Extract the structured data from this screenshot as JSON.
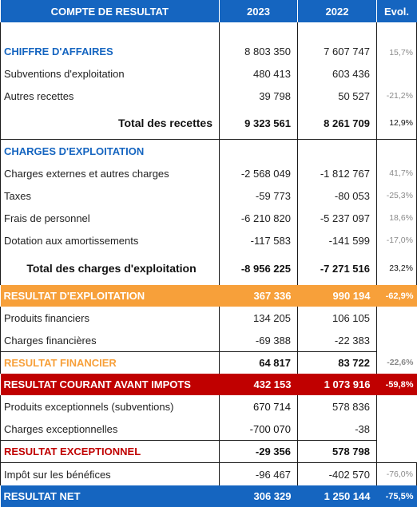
{
  "header": {
    "label": "COMPTE DE RESULTAT",
    "year1": "2023",
    "year2": "2022",
    "evol": "Evol."
  },
  "ca": {
    "title": "CHIFFRE D'AFFAIRES",
    "v2023": "8 803 350",
    "v2022": "7 607 747",
    "evol": "15,7%"
  },
  "subv": {
    "label": "Subventions d'exploitation",
    "v2023": "480 413",
    "v2022": "603 436",
    "evol": ""
  },
  "autres": {
    "label": "Autres recettes",
    "v2023": "39 798",
    "v2022": "50 527",
    "evol": "-21,2%"
  },
  "total_recettes": {
    "label": "Total des recettes",
    "v2023": "9 323 561",
    "v2022": "8 261 709",
    "evol": "12,9%"
  },
  "charges_title": "CHARGES D'EXPLOITATION",
  "charges_ext": {
    "label": "Charges externes et autres charges",
    "v2023": "-2 568 049",
    "v2022": "-1 812 767",
    "evol": "41,7%"
  },
  "taxes": {
    "label": "Taxes",
    "v2023": "-59 773",
    "v2022": "-80 053",
    "evol": "-25,3%"
  },
  "personnel": {
    "label": "Frais de personnel",
    "v2023": "-6 210 820",
    "v2022": "-5 237 097",
    "evol": "18,6%"
  },
  "dotation": {
    "label": "Dotation aux amortissements",
    "v2023": "-117 583",
    "v2022": "-141 599",
    "evol": "-17,0%"
  },
  "total_charges": {
    "label": "Total des charges d'exploitation",
    "v2023": "-8 956 225",
    "v2022": "-7 271 516",
    "evol": "23,2%"
  },
  "res_exploit": {
    "label": "RESULTAT D'EXPLOITATION",
    "v2023": "367 336",
    "v2022": "990 194",
    "evol": "-62,9%"
  },
  "prod_fin": {
    "label": "Produits financiers",
    "v2023": "134 205",
    "v2022": "106 105",
    "evol": ""
  },
  "charges_fin": {
    "label": "Charges financières",
    "v2023": "-69 388",
    "v2022": "-22 383",
    "evol": ""
  },
  "res_fin": {
    "label": "RESULTAT FINANCIER",
    "v2023": "64 817",
    "v2022": "83 722",
    "evol": "-22,6%"
  },
  "res_courant": {
    "label": "RESULTAT COURANT AVANT IMPOTS",
    "v2023": "432 153",
    "v2022": "1 073 916",
    "evol": "-59,8%"
  },
  "prod_exc": {
    "label": "Produits exceptionnels (subventions)",
    "v2023": "670 714",
    "v2022": "578 836",
    "evol": ""
  },
  "charges_exc": {
    "label": "Charges exceptionnelles",
    "v2023": "-700 070",
    "v2022": "-38",
    "evol": ""
  },
  "res_exc": {
    "label": "RESULTAT EXCEPTIONNEL",
    "v2023": "-29 356",
    "v2022": "578 798",
    "evol": ""
  },
  "impot": {
    "label": "Impôt sur les bénéfices",
    "v2023": "-96 467",
    "v2022": "-402 570",
    "evol": "-76,0%"
  },
  "res_net": {
    "label": "RESULTAT NET",
    "v2023": "306 329",
    "v2022": "1 250 144",
    "evol": "-75,5%"
  },
  "colors": {
    "blue": "#1565c0",
    "orange": "#f7a03a",
    "darkred": "#c00000",
    "grey_text": "#8a8a8a"
  }
}
